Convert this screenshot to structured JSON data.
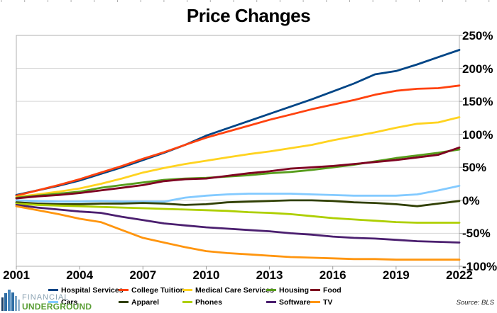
{
  "title": "Price Changes",
  "source_note": "Source: BLS",
  "logo": {
    "line1": "FINANCIAL",
    "line2": "UNDERGROUND"
  },
  "chart_data": {
    "type": "line",
    "title": "Price Changes",
    "x": [
      2001,
      2002,
      2003,
      2004,
      2005,
      2006,
      2007,
      2008,
      2009,
      2010,
      2011,
      2012,
      2013,
      2014,
      2015,
      2016,
      2017,
      2018,
      2019,
      2020,
      2021,
      2022
    ],
    "xlim": [
      2001,
      2022
    ],
    "ylim": [
      -100,
      250
    ],
    "grid": "horizontal",
    "legend_position": "bottom",
    "x_tick_labels": [
      "2001",
      "2004",
      "2007",
      "2010",
      "2013",
      "2016",
      "2019",
      "2022"
    ],
    "y_tick_labels": [
      "250%",
      "200%",
      "150%",
      "100%",
      "50%",
      "0%",
      "-50%",
      "-100%"
    ],
    "series": [
      {
        "name": "Hospital Services",
        "color": "#004586",
        "values": [
          8,
          15,
          22,
          30,
          40,
          50,
          61,
          72,
          84,
          98,
          109,
          120,
          131,
          142,
          153,
          165,
          177,
          191,
          196,
          206,
          217,
          228
        ]
      },
      {
        "name": "College Tuition",
        "color": "#FF420E",
        "values": [
          7,
          15,
          23,
          32,
          42,
          52,
          63,
          73,
          84,
          95,
          104,
          113,
          122,
          130,
          138,
          145,
          152,
          160,
          166,
          169,
          170,
          174
        ]
      },
      {
        "name": "Medical Care Services",
        "color": "#FFD320",
        "values": [
          5,
          9,
          13,
          18,
          25,
          33,
          42,
          49,
          55,
          60,
          65,
          70,
          74,
          79,
          84,
          91,
          97,
          103,
          110,
          116,
          118,
          126
        ]
      },
      {
        "name": "Housing",
        "color": "#579D1C",
        "values": [
          4,
          7,
          10,
          13,
          19,
          23,
          27,
          31,
          33,
          34,
          36,
          38,
          41,
          43,
          46,
          50,
          54,
          59,
          64,
          68,
          72,
          77
        ]
      },
      {
        "name": "Food",
        "color": "#7E0021",
        "values": [
          3,
          6,
          8,
          11,
          15,
          19,
          23,
          29,
          32,
          33,
          37,
          41,
          44,
          48,
          50,
          52,
          55,
          58,
          61,
          65,
          69,
          80
        ]
      },
      {
        "name": "Cars",
        "color": "#83CAFF",
        "values": [
          0,
          -1,
          -2,
          -2,
          -1,
          -2,
          -2,
          -2,
          4,
          7,
          9,
          10,
          10,
          10,
          9,
          8,
          7,
          7,
          7,
          9,
          15,
          22
        ]
      },
      {
        "name": "Apparel",
        "color": "#314004",
        "values": [
          -3,
          -5,
          -6,
          -6,
          -5,
          -5,
          -4,
          -5,
          -7,
          -6,
          -3,
          -2,
          -1,
          0,
          0,
          -1,
          -3,
          -4,
          -6,
          -9,
          -5,
          -1
        ]
      },
      {
        "name": "Phones",
        "color": "#AECF00",
        "values": [
          -5,
          -7,
          -8,
          -9,
          -10,
          -11,
          -12,
          -13,
          -14,
          -15,
          -16,
          -18,
          -19,
          -21,
          -24,
          -27,
          -29,
          -31,
          -33,
          -34,
          -34,
          -34
        ]
      },
      {
        "name": "Software",
        "color": "#4B1F6F",
        "values": [
          -7,
          -11,
          -14,
          -17,
          -19,
          -25,
          -30,
          -35,
          -38,
          -41,
          -43,
          -45,
          -47,
          -50,
          -52,
          -55,
          -57,
          -58,
          -60,
          -62,
          -63,
          -64
        ]
      },
      {
        "name": "TV",
        "color": "#FF950E",
        "values": [
          -9,
          -15,
          -21,
          -28,
          -33,
          -45,
          -57,
          -64,
          -71,
          -77,
          -80,
          -82,
          -84,
          -86,
          -87,
          -88,
          -89,
          -89,
          -90,
          -90,
          -90,
          -90
        ]
      }
    ],
    "legend_rows": [
      [
        "Hospital Services",
        "College Tuition",
        "Medical Care Services",
        "Housing",
        "Food"
      ],
      [
        "Cars",
        "Apparel",
        "Phones",
        "Software",
        "TV"
      ]
    ]
  }
}
